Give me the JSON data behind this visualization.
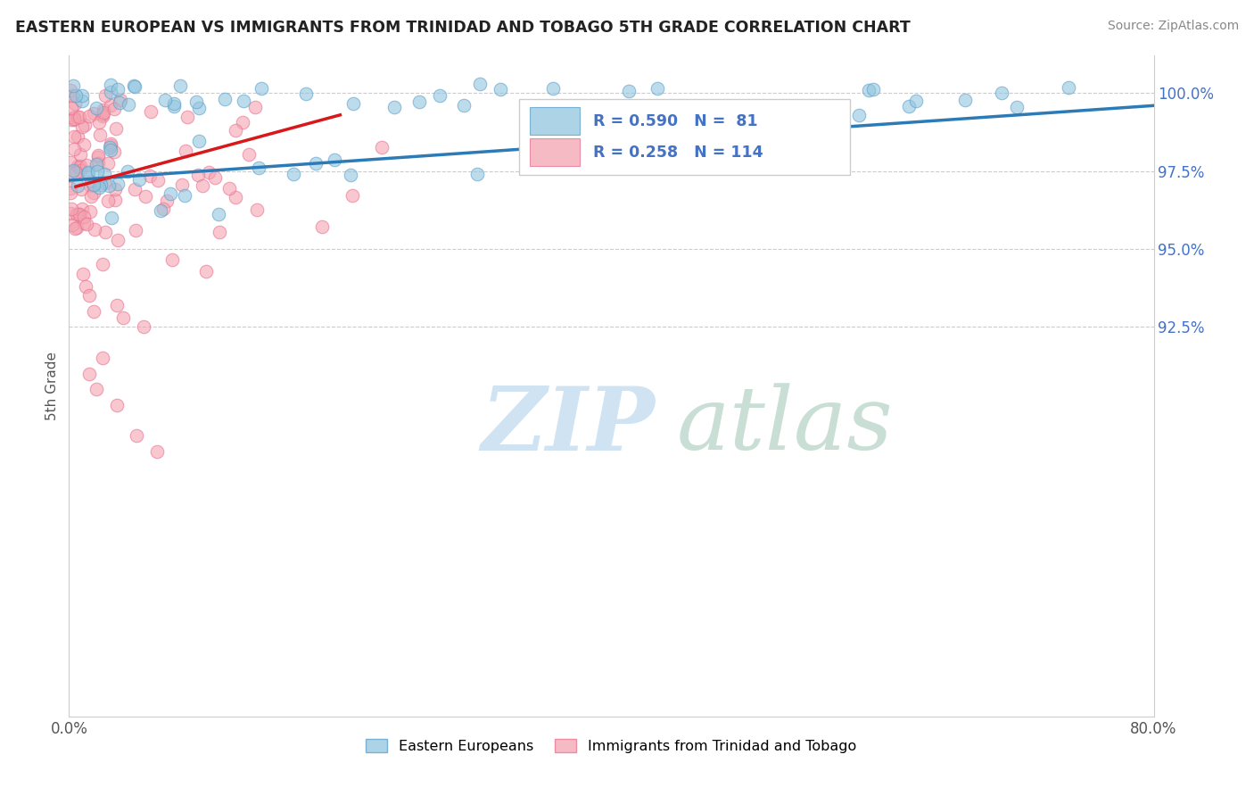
{
  "title": "EASTERN EUROPEAN VS IMMIGRANTS FROM TRINIDAD AND TOBAGO 5TH GRADE CORRELATION CHART",
  "source": "Source: ZipAtlas.com",
  "xlabel_ticks": [
    "0.0%",
    "80.0%"
  ],
  "ylabel_ticks": [
    92.5,
    95.0,
    97.5,
    100.0
  ],
  "ylabel_tick_labels": [
    "92.5%",
    "95.0%",
    "97.5%",
    "100.0%"
  ],
  "ylabel_label": "5th Grade",
  "legend_labels": [
    "Eastern Europeans",
    "Immigrants from Trinidad and Tobago"
  ],
  "blue_R": 0.59,
  "blue_N": 81,
  "pink_R": 0.258,
  "pink_N": 114,
  "blue_color": "#92c5de",
  "pink_color": "#f4a3b0",
  "blue_edge_color": "#5b9ec9",
  "pink_edge_color": "#e87090",
  "blue_line_color": "#2c7bb6",
  "pink_line_color": "#d7191c",
  "xmin": 0.0,
  "xmax": 80.0,
  "ymin": 80.0,
  "ymax": 101.2,
  "blue_line_x0": 0.0,
  "blue_line_y0": 97.2,
  "blue_line_x1": 80.0,
  "blue_line_y1": 99.6,
  "pink_line_x0": 0.5,
  "pink_line_y0": 97.0,
  "pink_line_x1": 20.0,
  "pink_line_y1": 99.3
}
